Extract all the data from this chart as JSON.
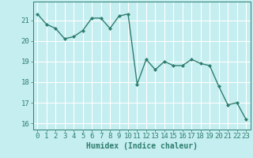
{
  "x": [
    0,
    1,
    2,
    3,
    4,
    5,
    6,
    7,
    8,
    9,
    10,
    11,
    12,
    13,
    14,
    15,
    16,
    17,
    18,
    19,
    20,
    21,
    22,
    23
  ],
  "y": [
    21.3,
    20.8,
    20.6,
    20.1,
    20.2,
    20.5,
    21.1,
    21.1,
    20.6,
    21.2,
    21.3,
    17.9,
    19.1,
    18.6,
    19.0,
    18.8,
    18.8,
    19.1,
    18.9,
    18.8,
    17.8,
    16.9,
    17.0,
    16.2
  ],
  "line_color": "#2e7d6e",
  "marker": "D",
  "markersize": 2.0,
  "linewidth": 1.0,
  "background_color": "#c5eef0",
  "grid_color": "#ffffff",
  "xlabel": "Humidex (Indice chaleur)",
  "xlabel_fontsize": 7,
  "tick_fontsize": 6.5,
  "ylim": [
    15.7,
    21.9
  ],
  "xlim": [
    -0.5,
    23.5
  ],
  "yticks": [
    16,
    17,
    18,
    19,
    20,
    21
  ],
  "xticks": [
    0,
    1,
    2,
    3,
    4,
    5,
    6,
    7,
    8,
    9,
    10,
    11,
    12,
    13,
    14,
    15,
    16,
    17,
    18,
    19,
    20,
    21,
    22,
    23
  ]
}
